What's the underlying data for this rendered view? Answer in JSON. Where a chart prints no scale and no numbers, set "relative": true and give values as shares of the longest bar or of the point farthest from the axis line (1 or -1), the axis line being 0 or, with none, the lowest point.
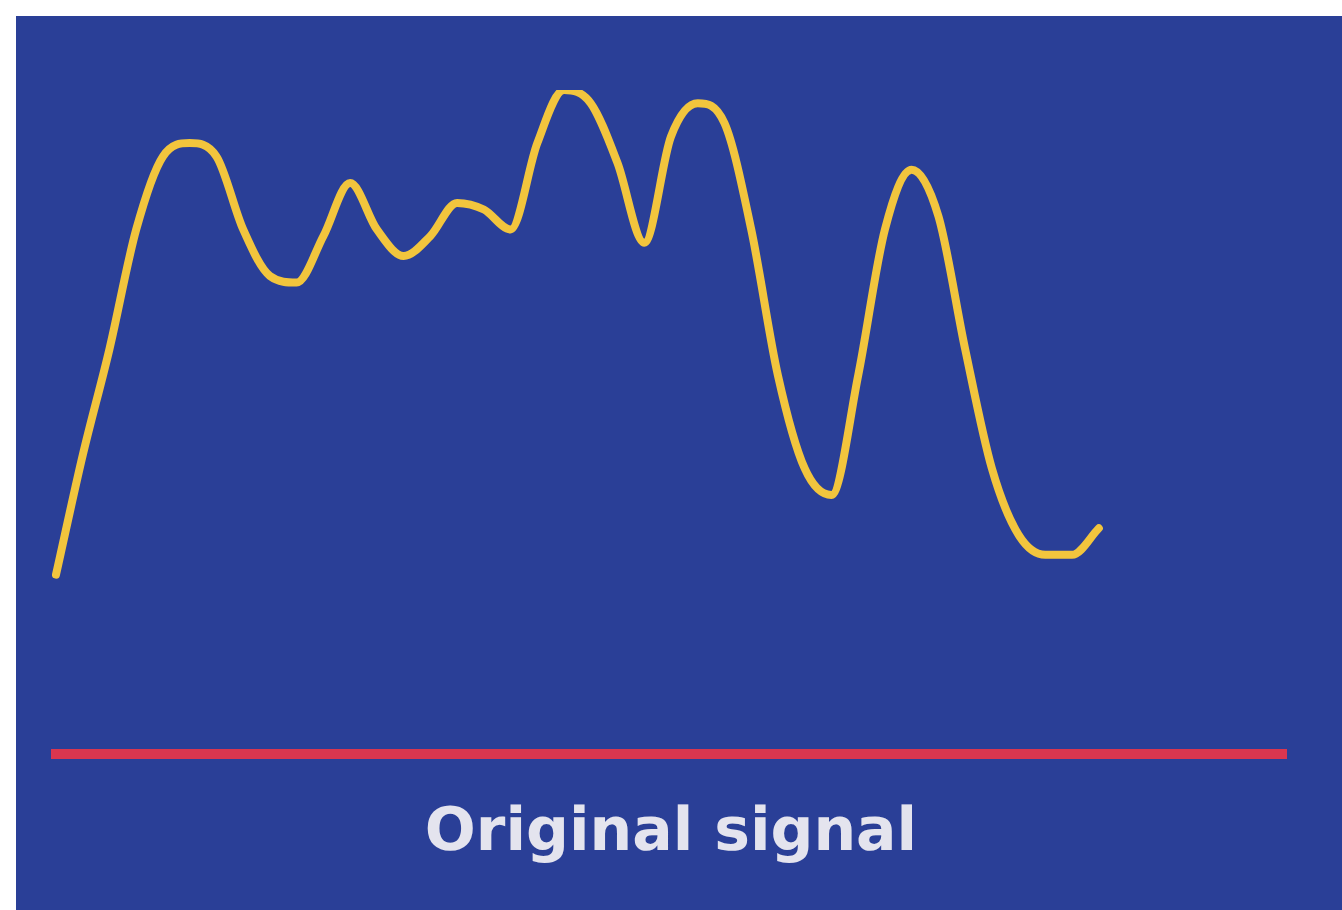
{
  "chart_data": {
    "type": "line",
    "xlabel": "Original signal",
    "relative": true,
    "color": "#f2c53d",
    "categories": [
      null,
      null,
      null,
      null,
      null,
      null,
      null,
      null,
      null,
      null,
      null,
      null,
      null,
      null,
      null,
      null,
      null,
      null,
      null,
      null,
      null,
      null,
      null,
      null,
      null,
      null,
      null,
      null,
      null,
      null,
      null,
      null,
      null,
      null,
      null,
      null,
      null,
      null,
      null,
      null,
      null,
      null,
      null,
      null,
      null,
      null,
      null
    ],
    "values": [
      0.27,
      0.45,
      0.61,
      0.79,
      0.9,
      0.92,
      0.9,
      0.79,
      0.72,
      0.71,
      0.78,
      0.86,
      0.79,
      0.75,
      0.78,
      0.83,
      0.82,
      0.79,
      0.92,
      1,
      0.98,
      0.89,
      0.77,
      0.93,
      0.98,
      0.95,
      0.79,
      0.57,
      0.43,
      0.39,
      0.57,
      0.79,
      0.88,
      0.81,
      0.61,
      0.43,
      0.33,
      0.3,
      0.3,
      0.34,
      null,
      null,
      null,
      null,
      null,
      null,
      null
    ]
  }
}
